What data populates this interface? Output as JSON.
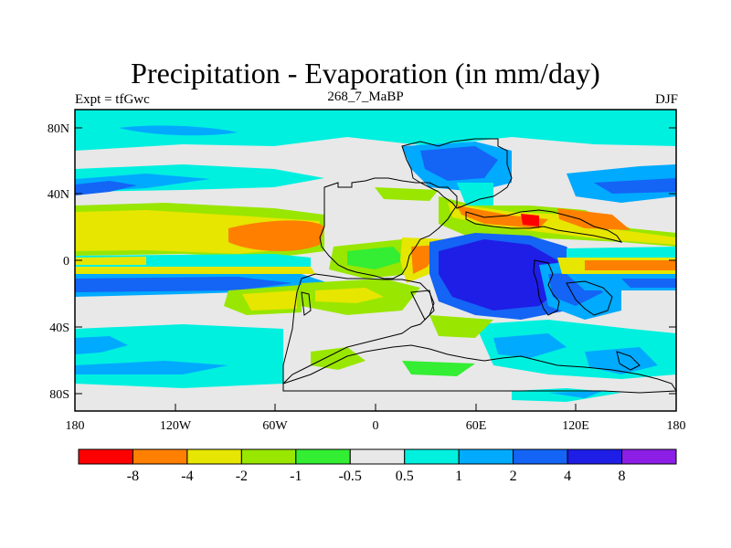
{
  "title": "Precipitation - Evaporation (in mm/day)",
  "subtitle_left": "Expt = tfGwc",
  "subtitle_center": "268_7_MaBP",
  "subtitle_right": "DJF",
  "y_ticks": [
    "80N",
    "40N",
    "0",
    "40S",
    "80S"
  ],
  "x_ticks": [
    "180",
    "120W",
    "60W",
    "0",
    "60E",
    "120E",
    "180"
  ],
  "colorbar": {
    "colors": [
      "#ff0000",
      "#ff8000",
      "#e6e600",
      "#99e600",
      "#33ee33",
      "#e8e8e8",
      "#00f0e0",
      "#00aaff",
      "#1464f5",
      "#1e1ee6",
      "#8c1ee6"
    ],
    "labels": [
      "-8",
      "-4",
      "-2",
      "-1",
      "-0.5",
      "0.5",
      "1",
      "2",
      "4",
      "8"
    ]
  }
}
